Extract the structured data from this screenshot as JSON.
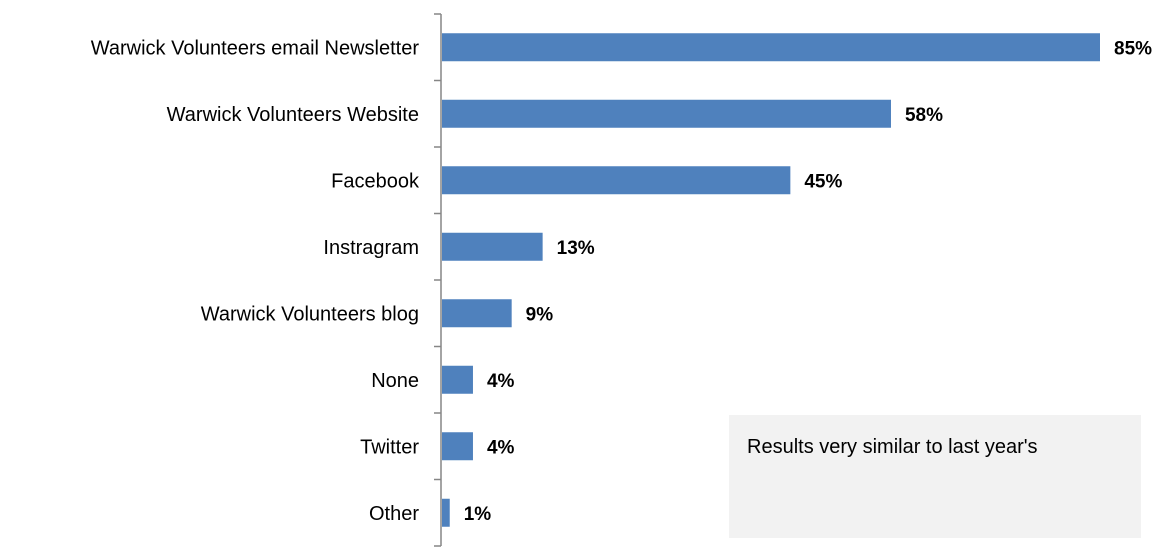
{
  "chart_data": {
    "type": "bar",
    "orientation": "horizontal",
    "categories": [
      "Warwick Volunteers email Newsletter",
      "Warwick Volunteers Website",
      "Facebook",
      "Instragram",
      "Warwick Volunteers blog",
      "None",
      "Twitter",
      "Other"
    ],
    "values": [
      85,
      58,
      45,
      13,
      9,
      4,
      4,
      1
    ],
    "value_labels": [
      "85%",
      "58%",
      "45%",
      "13%",
      "9%",
      "4%",
      "4%",
      "1%"
    ],
    "xlim": [
      0,
      85
    ],
    "grid": false,
    "bar_color": "#4f81bd"
  },
  "note": {
    "text": "Results very similar to last year's"
  }
}
